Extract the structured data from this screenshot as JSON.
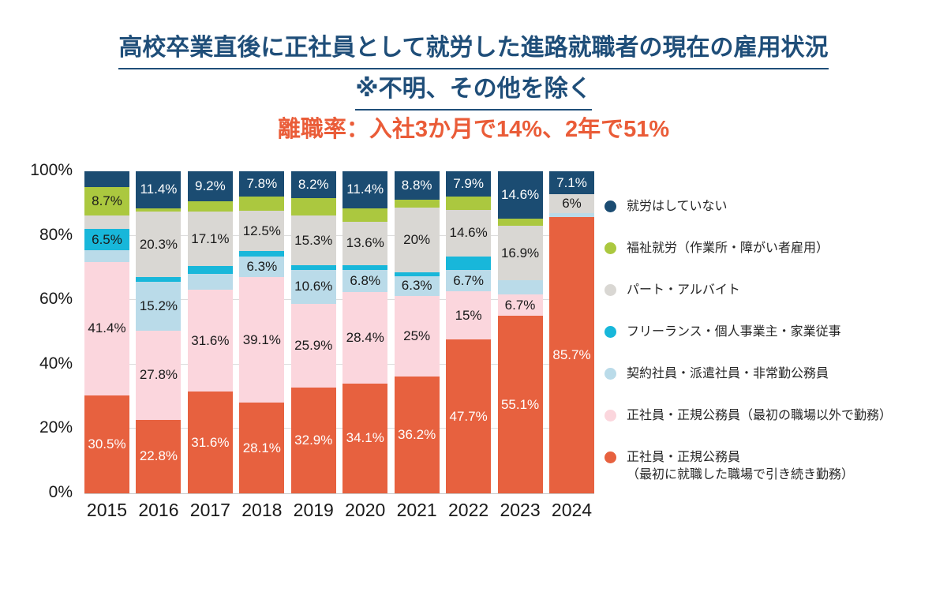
{
  "chart_data": {
    "type": "bar",
    "variant": "stacked-100-percent",
    "title": "高校卒業直後に正社員として就労した進路就職者の現在の雇用状況",
    "subtitle": "※不明、その他を除く",
    "annotation": "離職率：入社3か月で14%、2年で51%",
    "categories": [
      "2015",
      "2016",
      "2017",
      "2018",
      "2019",
      "2020",
      "2021",
      "2022",
      "2023",
      "2024"
    ],
    "y_axis": {
      "min": 0,
      "max": 100,
      "ticks": [
        "0%",
        "20%",
        "40%",
        "60%",
        "80%",
        "100%"
      ],
      "grid": "horizontal"
    },
    "series": [
      {
        "name": "正社員・正規公務員（最初に就職した職場で引き続き勤務）",
        "color": "#e7613f",
        "label_color": "#ffffff",
        "values": [
          30.5,
          22.8,
          31.6,
          28.1,
          32.9,
          34.1,
          36.2,
          47.7,
          55.1,
          85.7
        ],
        "labels": [
          "30.5%",
          "22.8%",
          "31.6%",
          "28.1%",
          "32.9%",
          "34.1%",
          "36.2%",
          "47.7%",
          "55.1%",
          "85.7%"
        ]
      },
      {
        "name": "正社員・正規公務員（最初の職場以外で勤務）",
        "color": "#fbd6dd",
        "label_color": "#1a1a1a",
        "values": [
          41.4,
          27.8,
          31.6,
          39.1,
          25.9,
          28.4,
          25,
          15,
          6.7,
          0
        ],
        "labels": [
          "41.4%",
          "27.8%",
          "31.6%",
          "39.1%",
          "25.9%",
          "28.4%",
          "25%",
          "15%",
          "6.7%",
          ""
        ]
      },
      {
        "name": "契約社員・派遣社員・非常勤公務員",
        "color": "#badbe9",
        "label_color": "#1a1a1a",
        "values": [
          3.6,
          15.2,
          4.9,
          6.3,
          10.6,
          6.8,
          6.3,
          6.7,
          4.3,
          1.2
        ],
        "labels": [
          "",
          "15.2%",
          "",
          "6.3%",
          "10.6%",
          "6.8%",
          "6.3%",
          "6.7%",
          "",
          ""
        ]
      },
      {
        "name": "フリーランス・個人事業主・家業従事",
        "color": "#18b7da",
        "label_color": "#1a1a1a",
        "values": [
          6.5,
          1.3,
          2.4,
          1.7,
          1.5,
          1.5,
          1.2,
          4.1,
          0,
          0
        ],
        "labels": [
          "6.5%",
          "",
          "",
          "",
          "",
          "",
          "",
          "",
          "",
          ""
        ]
      },
      {
        "name": "パート・アルバイト",
        "color": "#d9d7d3",
        "label_color": "#1a1a1a",
        "values": [
          4.4,
          20.3,
          17.1,
          12.5,
          15.3,
          13.6,
          20,
          14.6,
          16.9,
          6
        ],
        "labels": [
          "",
          "20.3%",
          "17.1%",
          "12.5%",
          "15.3%",
          "13.6%",
          "20%",
          "14.6%",
          "16.9%",
          "6%"
        ]
      },
      {
        "name": "福祉就労（作業所・障がい者雇用）",
        "color": "#abc83f",
        "label_color": "#1a1a1a",
        "values": [
          8.7,
          1.2,
          3.2,
          4.5,
          5.6,
          4.2,
          2.5,
          4.0,
          2.4,
          0
        ],
        "labels": [
          "8.7%",
          "",
          "",
          "",
          "",
          "",
          "",
          "",
          "",
          ""
        ]
      },
      {
        "name": "就労はしていない",
        "color": "#1b4c72",
        "label_color": "#ffffff",
        "values": [
          4.9,
          11.4,
          9.2,
          7.8,
          8.2,
          11.4,
          8.8,
          7.9,
          14.6,
          7.1
        ],
        "labels": [
          "",
          "11.4%",
          "9.2%",
          "7.8%",
          "8.2%",
          "11.4%",
          "8.8%",
          "7.9%",
          "14.6%",
          "7.1%"
        ]
      }
    ],
    "legend": {
      "position": "right",
      "items": [
        {
          "label": "就労はしていない",
          "color": "#1b4c72"
        },
        {
          "label": "福祉就労（作業所・障がい者雇用）",
          "color": "#abc83f"
        },
        {
          "label": "パート・アルバイト",
          "color": "#d9d7d3"
        },
        {
          "label": "フリーランス・個人事業主・家業従事",
          "color": "#18b7da"
        },
        {
          "label": "契約社員・派遣社員・非常勤公務員",
          "color": "#badbe9"
        },
        {
          "label": "正社員・正規公務員（最初の職場以外で勤務）",
          "color": "#fbd6dd"
        },
        {
          "label": "正社員・正規公務員",
          "label2": "（最初に就職した職場で引き続き勤務）",
          "color": "#e7613f"
        }
      ]
    }
  }
}
